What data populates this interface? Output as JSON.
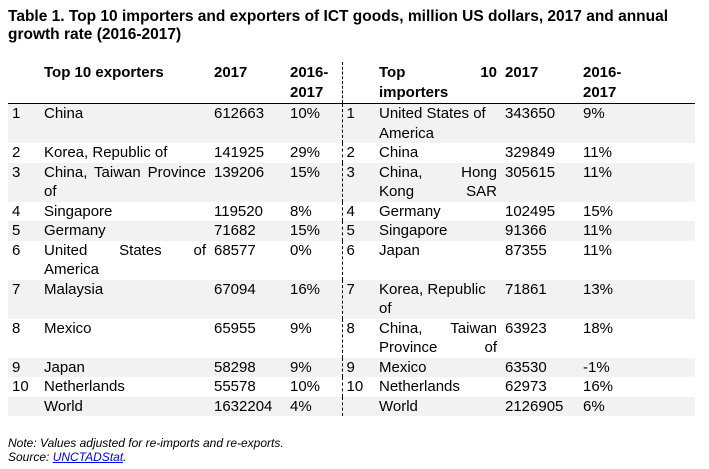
{
  "title": "Table 1. Top 10 importers and exporters of ICT goods, million US dollars, 2017 and annual growth rate (2016-2017)",
  "headers": {
    "exporters": "Top 10 exporters",
    "importers_part1": "Top",
    "importers_part2": "10",
    "importers_part3": "importers",
    "year": "2017",
    "growth_line1": "2016-",
    "growth_line2": "2017"
  },
  "rows": [
    {
      "er": "1",
      "en": "China",
      "ev": "612663",
      "eg": "10%",
      "ir": "1",
      "in": "United States of America",
      "iv": "343650",
      "ig": "9%"
    },
    {
      "er": "2",
      "en": "Korea, Republic of",
      "ev": "141925",
      "eg": "29%",
      "ir": "2",
      "in": "China",
      "iv": "329849",
      "ig": "11%"
    },
    {
      "er": "3",
      "en": "China, Taiwan Province of",
      "ev": "139206",
      "eg": "15%",
      "ir": "3",
      "in": "China, Hong Kong SAR",
      "iv": "305615",
      "ig": "11%"
    },
    {
      "er": "4",
      "en": "Singapore",
      "ev": "119520",
      "eg": "8%",
      "ir": "4",
      "in": "Germany",
      "iv": "102495",
      "ig": "15%"
    },
    {
      "er": "5",
      "en": "Germany",
      "ev": "71682",
      "eg": "15%",
      "ir": "5",
      "in": "Singapore",
      "iv": "91366",
      "ig": "11%"
    },
    {
      "er": "6",
      "en": "United States of America",
      "ev": "68577",
      "eg": "0%",
      "ir": "6",
      "in": "Japan",
      "iv": "87355",
      "ig": "11%"
    },
    {
      "er": "7",
      "en": "Malaysia",
      "ev": "67094",
      "eg": "16%",
      "ir": "7",
      "in": "Korea, Republic of",
      "iv": "71861",
      "ig": "13%"
    },
    {
      "er": "8",
      "en": "Mexico",
      "ev": "65955",
      "eg": "9%",
      "ir": "8",
      "in": "China, Taiwan Province of",
      "iv": "63923",
      "ig": "18%"
    },
    {
      "er": "9",
      "en": "Japan",
      "ev": "58298",
      "eg": "9%",
      "ir": "9",
      "in": "Mexico",
      "iv": "63530",
      "ig": "-1%"
    },
    {
      "er": "10",
      "en": "Netherlands",
      "ev": "55578",
      "eg": "10%",
      "ir": "10",
      "in": "Netherlands",
      "iv": "62973",
      "ig": "16%"
    },
    {
      "er": "",
      "en": "World",
      "ev": "1632204",
      "eg": "4%",
      "ir": "",
      "in": "World",
      "iv": "2126905",
      "ig": "6%"
    }
  ],
  "note": {
    "line1": "Note: Values adjusted for re-imports and re-exports.",
    "source_label": "Source: ",
    "source_link": "UNCTADStat",
    "source_end": "."
  }
}
